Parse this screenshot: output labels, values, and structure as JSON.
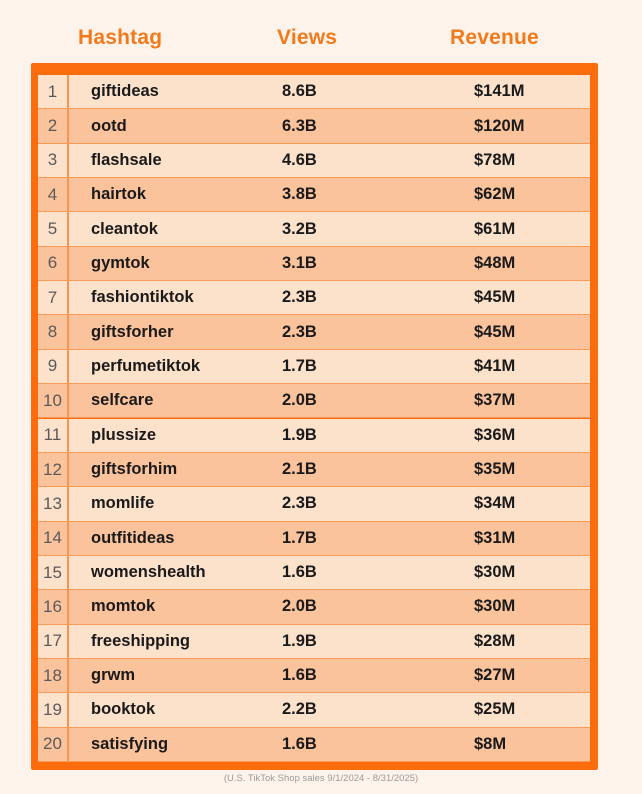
{
  "chart_data": {
    "type": "table",
    "columns": [
      "Hashtag",
      "Views",
      "Revenue"
    ],
    "rows": [
      {
        "rank": "1",
        "hashtag": "giftideas",
        "views": "8.6B",
        "revenue": "$141M"
      },
      {
        "rank": "2",
        "hashtag": "ootd",
        "views": "6.3B",
        "revenue": "$120M"
      },
      {
        "rank": "3",
        "hashtag": "flashsale",
        "views": "4.6B",
        "revenue": "$78M"
      },
      {
        "rank": "4",
        "hashtag": "hairtok",
        "views": "3.8B",
        "revenue": "$62M"
      },
      {
        "rank": "5",
        "hashtag": "cleantok",
        "views": "3.2B",
        "revenue": "$61M"
      },
      {
        "rank": "6",
        "hashtag": "gymtok",
        "views": "3.1B",
        "revenue": "$48M"
      },
      {
        "rank": "7",
        "hashtag": "fashiontiktok",
        "views": "2.3B",
        "revenue": "$45M"
      },
      {
        "rank": "8",
        "hashtag": "giftsforher",
        "views": "2.3B",
        "revenue": "$45M"
      },
      {
        "rank": "9",
        "hashtag": "perfumetiktok",
        "views": "1.7B",
        "revenue": "$41M"
      },
      {
        "rank": "10",
        "hashtag": "selfcare",
        "views": "2.0B",
        "revenue": "$37M"
      },
      {
        "rank": "11",
        "hashtag": "plussize",
        "views": "1.9B",
        "revenue": "$36M"
      },
      {
        "rank": "12",
        "hashtag": "giftsforhim",
        "views": "2.1B",
        "revenue": "$35M"
      },
      {
        "rank": "13",
        "hashtag": "momlife",
        "views": "2.3B",
        "revenue": "$34M"
      },
      {
        "rank": "14",
        "hashtag": "outfitideas",
        "views": "1.7B",
        "revenue": "$31M"
      },
      {
        "rank": "15",
        "hashtag": "womenshealth",
        "views": "1.6B",
        "revenue": "$30M"
      },
      {
        "rank": "16",
        "hashtag": "momtok",
        "views": "2.0B",
        "revenue": "$30M"
      },
      {
        "rank": "17",
        "hashtag": "freeshipping",
        "views": "1.9B",
        "revenue": "$28M"
      },
      {
        "rank": "18",
        "hashtag": "grwm",
        "views": "1.6B",
        "revenue": "$27M"
      },
      {
        "rank": "19",
        "hashtag": "booktok",
        "views": "2.2B",
        "revenue": "$25M"
      },
      {
        "rank": "20",
        "hashtag": "satisfying",
        "views": "1.6B",
        "revenue": "$8M"
      }
    ],
    "footnote": "(U.S. TikTok Shop sales 9/1/2024 - 8/31/2025)"
  },
  "colors": {
    "accent": "#f07a1c",
    "frame": "#fb6d0c",
    "row_light": "#fde2cb",
    "row_dark": "#fbc39b",
    "background": "#fdf3ea"
  }
}
